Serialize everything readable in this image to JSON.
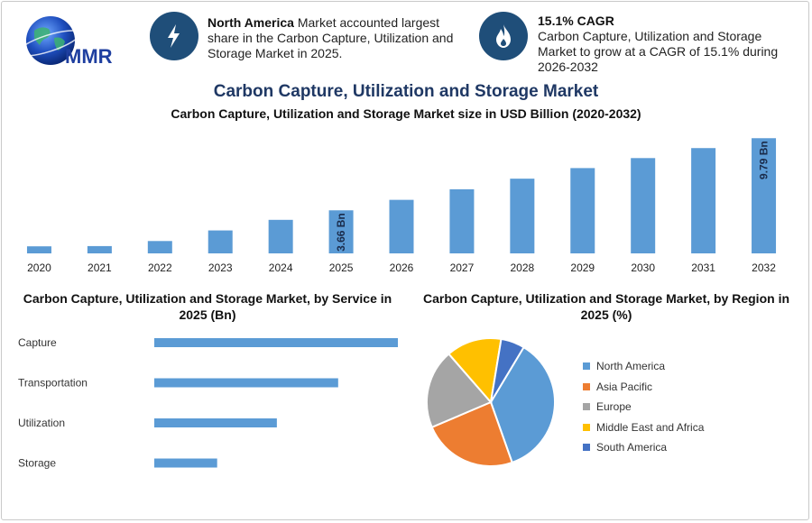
{
  "logo": {
    "text": "MMR"
  },
  "callouts": [
    {
      "bold": "North America",
      "text": " Market accounted largest share in the Carbon Capture, Utilization and Storage Market in 2025.",
      "icon": "lightning-icon"
    },
    {
      "bold": "15.1% CAGR",
      "text": "Carbon Capture, Utilization and Storage Market to grow at a CAGR of 15.1% during 2026-2032",
      "icon": "flame-icon"
    }
  ],
  "headline": "Carbon Capture, Utilization and Storage Market",
  "colors": {
    "bar": "#5b9bd5",
    "accent": "#1f4e79",
    "title": "#1f3864"
  },
  "chart_data": [
    {
      "type": "bar",
      "title": "Carbon Capture, Utilization and Storage Market size in USD Billion (2020-2032)",
      "categories": [
        "2020",
        "2021",
        "2022",
        "2023",
        "2024",
        "2025",
        "2026",
        "2027",
        "2028",
        "2029",
        "2030",
        "2031",
        "2032"
      ],
      "values": [
        0.6,
        0.62,
        1.05,
        1.95,
        2.85,
        3.66,
        4.55,
        5.45,
        6.35,
        7.25,
        8.1,
        8.95,
        9.79
      ],
      "data_labels": [
        {
          "index": 5,
          "text": "3.66 Bn"
        },
        {
          "index": 12,
          "text": "9.79 Bn"
        }
      ],
      "ylim": [
        0,
        10.5
      ],
      "grid": false
    },
    {
      "type": "bar",
      "orientation": "horizontal",
      "title": "Carbon Capture, Utilization and Storage Market, by Service in 2025 (Bn)",
      "categories": [
        "Capture",
        "Transportation",
        "Utilization",
        "Storage"
      ],
      "values": [
        1.55,
        1.17,
        0.78,
        0.4
      ],
      "xlim": [
        0,
        1.55
      ]
    },
    {
      "type": "pie",
      "title": "Carbon Capture, Utilization and Storage Market, by Region in 2025 (%)",
      "categories": [
        "North America",
        "Asia Pacific",
        "Europe",
        "Middle East and Africa",
        "South America"
      ],
      "values": [
        36,
        24,
        20,
        14,
        6
      ],
      "colors": [
        "#5b9bd5",
        "#ed7d31",
        "#a5a5a5",
        "#ffc000",
        "#4472c4"
      ],
      "legend": "right"
    }
  ]
}
